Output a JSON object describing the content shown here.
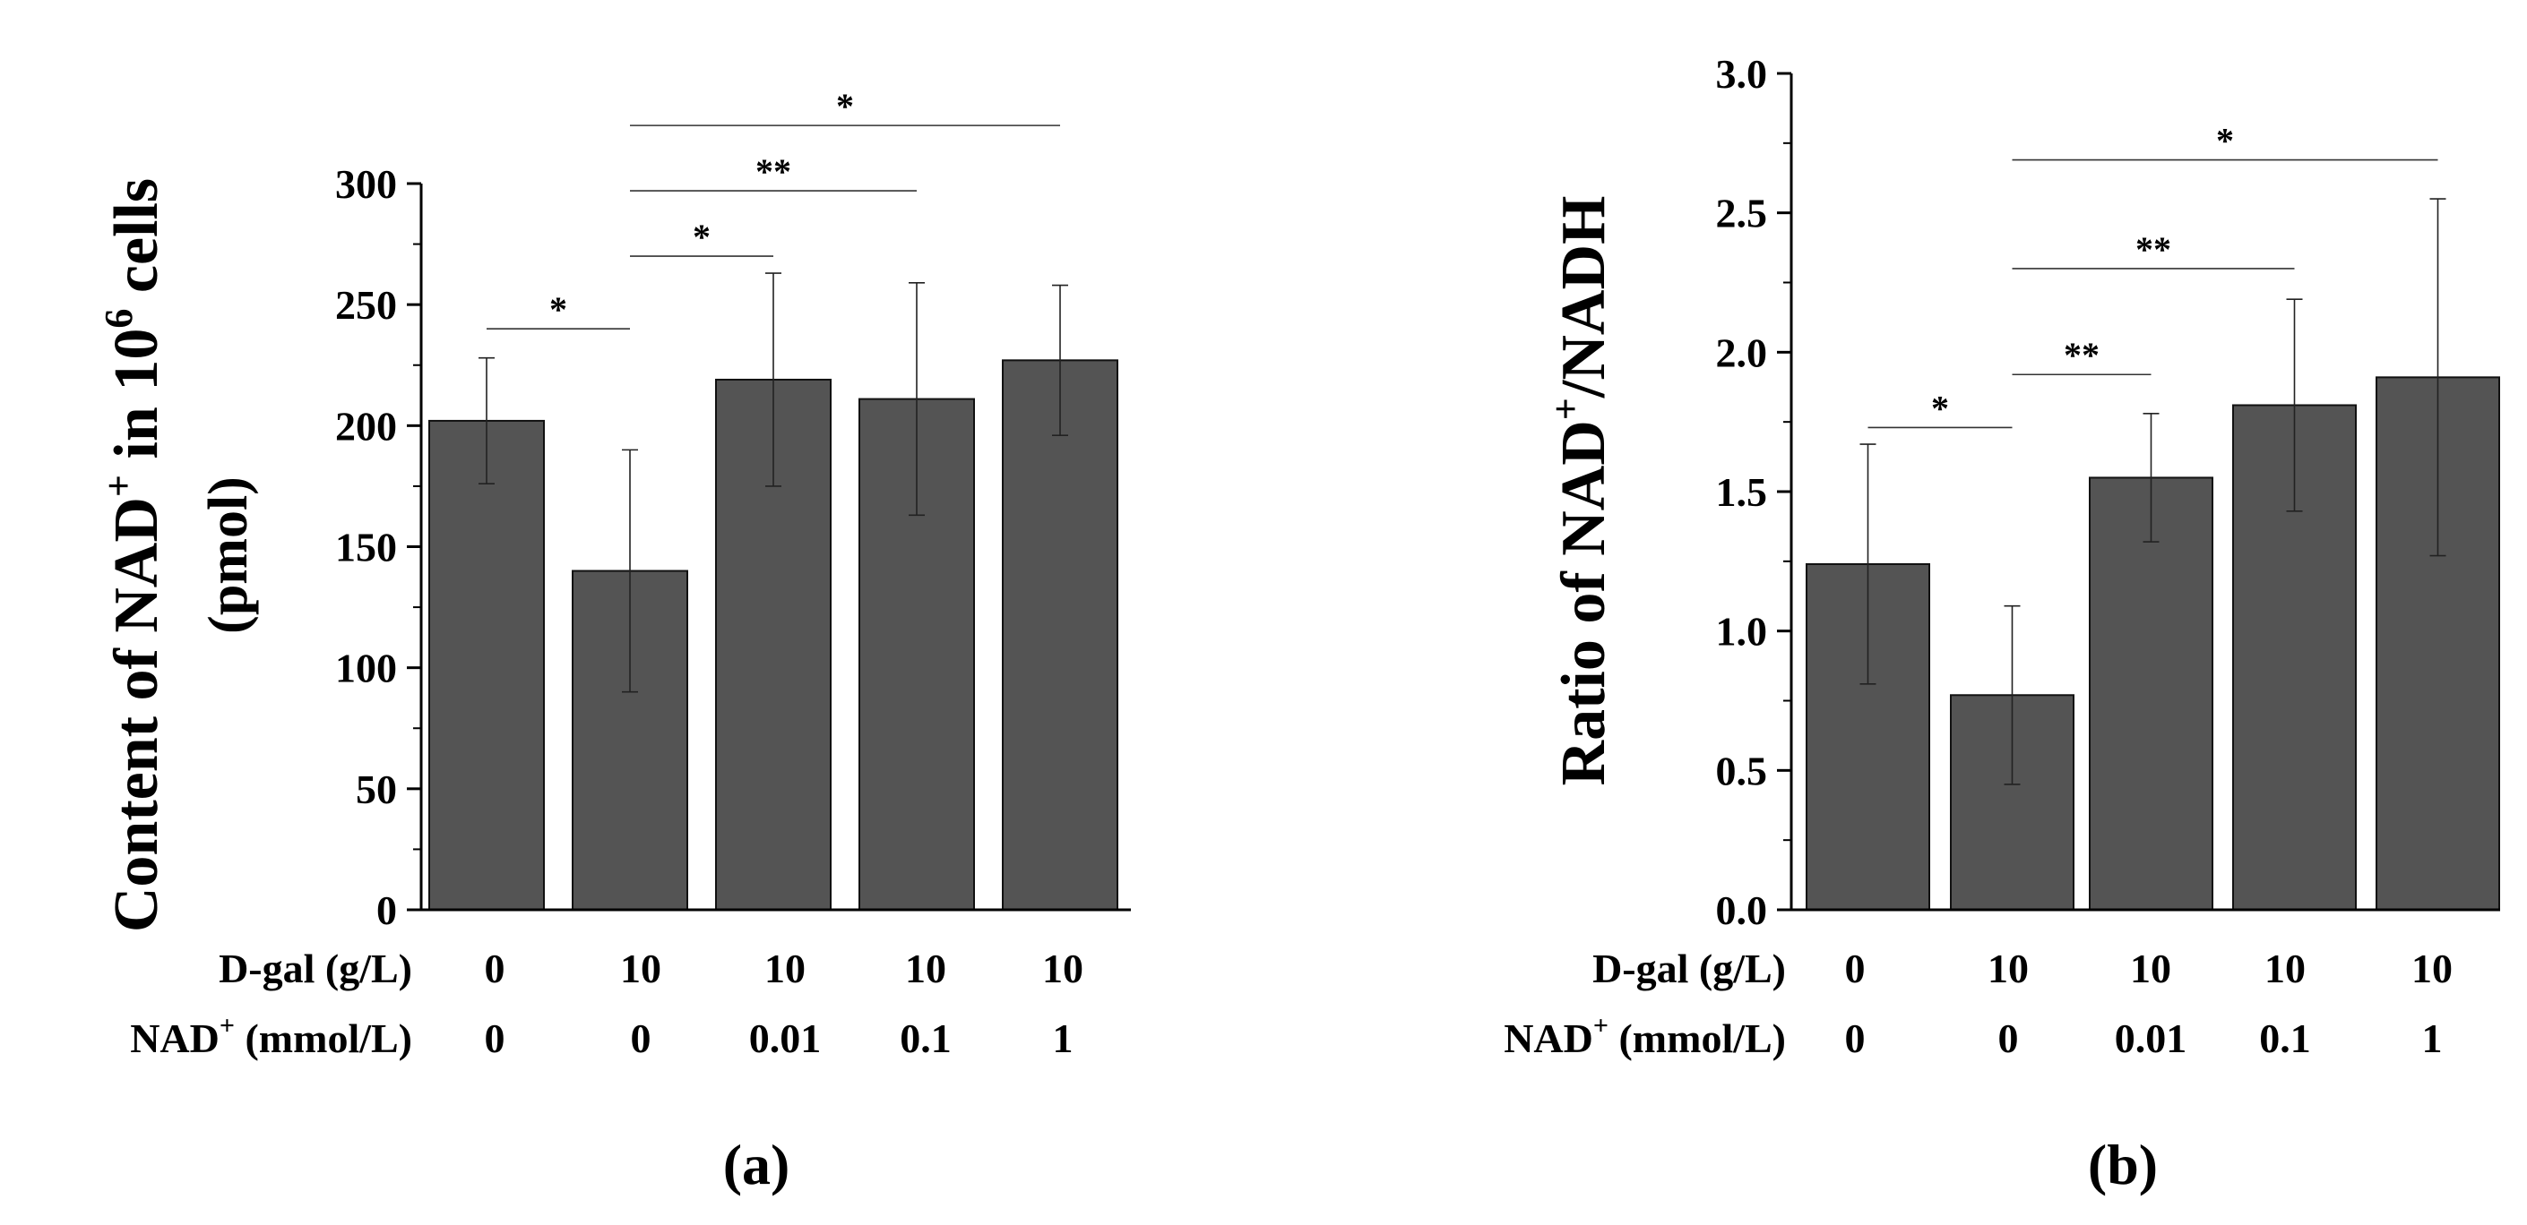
{
  "colors": {
    "bar": "#545454",
    "axis": "#000000",
    "background": "#ffffff"
  },
  "chart_data": [
    {
      "id": "a",
      "type": "bar",
      "panel_label": "(a)",
      "ylabel_parts": [
        "Content of NAD",
        "+",
        " in 10",
        "6",
        " cells"
      ],
      "ylabel_line2": "(pmol)",
      "ylim": [
        0,
        300
      ],
      "yticks": [
        0,
        50,
        100,
        150,
        200,
        250,
        300
      ],
      "ytick_labels": [
        "0",
        "50",
        "100",
        "150",
        "200",
        "250",
        "300"
      ],
      "values": [
        202,
        140,
        219,
        211,
        227
      ],
      "errors": [
        26,
        50,
        44,
        48,
        31
      ],
      "dgal_label": "D-gal (g/L)",
      "dgal_values": [
        "0",
        "10",
        "10",
        "10",
        "10"
      ],
      "nad_label_parts": [
        "NAD",
        "+",
        " (mmol/L)"
      ],
      "nad_values": [
        "0",
        "0",
        "0.01",
        "0.1",
        "1"
      ],
      "significance": [
        {
          "from": 0,
          "to": 1,
          "y": 240,
          "label": "*"
        },
        {
          "from": 1,
          "to": 2,
          "y": 270,
          "label": "*"
        },
        {
          "from": 1,
          "to": 3,
          "y": 297,
          "label": "**"
        },
        {
          "from": 1,
          "to": 4,
          "y": 324,
          "label": "*"
        }
      ]
    },
    {
      "id": "b",
      "type": "bar",
      "panel_label": "(b)",
      "ylabel_parts": [
        "Ratio of NAD",
        "+",
        "/NADH"
      ],
      "ylim": [
        0,
        3.0
      ],
      "yticks": [
        0,
        0.5,
        1.0,
        1.5,
        2.0,
        2.5,
        3.0
      ],
      "ytick_labels": [
        "0.0",
        "0.5",
        "1.0",
        "1.5",
        "2.0",
        "2.5",
        "3.0"
      ],
      "values": [
        1.24,
        0.77,
        1.55,
        1.81,
        1.91
      ],
      "errors": [
        0.43,
        0.32,
        0.23,
        0.38,
        0.64
      ],
      "dgal_label": "D-gal (g/L)",
      "dgal_values": [
        "0",
        "10",
        "10",
        "10",
        "10"
      ],
      "nad_label_parts": [
        "NAD",
        "+",
        " (mmol/L)"
      ],
      "nad_values": [
        "0",
        "0",
        "0.01",
        "0.1",
        "1"
      ],
      "significance": [
        {
          "from": 0,
          "to": 1,
          "y": 1.73,
          "label": "*"
        },
        {
          "from": 1,
          "to": 2,
          "y": 1.92,
          "label": "**"
        },
        {
          "from": 1,
          "to": 3,
          "y": 2.3,
          "label": "**"
        },
        {
          "from": 1,
          "to": 4,
          "y": 2.69,
          "label": "*"
        }
      ]
    }
  ]
}
